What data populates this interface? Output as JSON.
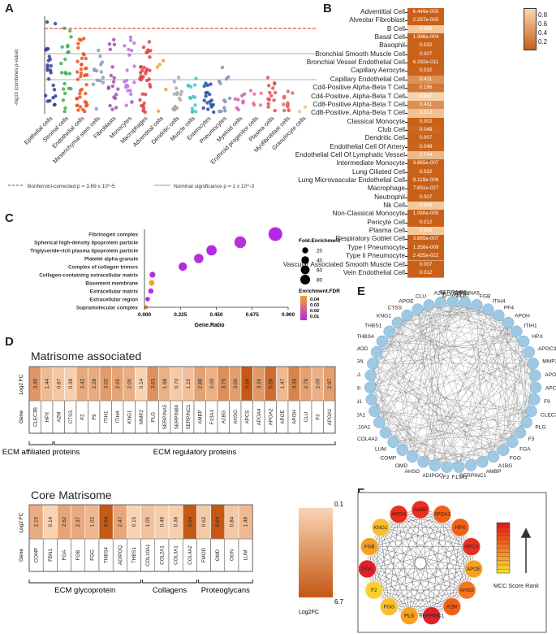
{
  "panels": {
    "a": "A",
    "b": "B",
    "c": "C",
    "d": "D",
    "e": "E",
    "f": "F"
  },
  "panel_a": {
    "ylabel": "-log10 (combines p-value)",
    "categories": [
      "Epithelial cells",
      "Stromal cells",
      "Endothelial cells",
      "Mesenchymal stem cells",
      "Fibroblasts",
      "Monocytes",
      "Macrophages",
      "Adventitial cells",
      "Dendritic cells",
      "Muscle cells",
      "Enterocytes",
      "Pneumocytes",
      "Myeloid cells",
      "Erythroid progenitor cells",
      "Plasma cells",
      "Myofibroblast cells",
      "Granulocyte cells"
    ],
    "legend_bonferroni": "Bonferroni-corrected p = 3.69 x 10^-5",
    "legend_nominal": "Nominal significance p = 1 x 10^-3",
    "colors": [
      "#3a3a9a",
      "#3ab04a",
      "#e8551e",
      "#8a9ab8",
      "#a050b0",
      "#c070e0",
      "#e04040",
      "#f0a030",
      "#aaaaaa",
      "#40c8c8",
      "#2050a0",
      "#8090c0",
      "#d060b0",
      "#f06aa0",
      "#e05050",
      "#e06060",
      "#f0c080"
    ]
  },
  "panel_b": {
    "title": "p-value",
    "colorbar_ticks": [
      "0.8",
      "0.6",
      "0.4",
      "0.2"
    ],
    "rows": [
      {
        "cell": "Adventitial Cell",
        "value": "6.449e-005"
      },
      {
        "cell": "Alveolar Fibroblast",
        "value": "2.297e-005"
      },
      {
        "cell": "B Cell",
        "value": "0.868"
      },
      {
        "cell": "Basal Cell",
        "value": "1.986e-004"
      },
      {
        "cell": "Basophil",
        "value": "0.032"
      },
      {
        "cell": "Bronchial Smooth Muscle Cell",
        "value": "0.007"
      },
      {
        "cell": "Bronchial Vessel Endothelial Cell",
        "value": "6.282e-011"
      },
      {
        "cell": "Capillary Aerocyte",
        "value": "0.032"
      },
      {
        "cell": "Capillary Endothelial Cell",
        "value": "0.411"
      },
      {
        "cell": "Cd4-Positive Alpha-Beta T Cell",
        "value": "0.196"
      },
      {
        "cell": "Cd4-Positive, Alpha-Beta T Cell",
        "value": "0.967"
      },
      {
        "cell": "Cd8-Positive Alpha-Beta T Cell",
        "value": "0.411"
      },
      {
        "cell": "Cd8-Positive, Alpha-Beta T Cell",
        "value": "0.812"
      },
      {
        "cell": "Classical Monocyte",
        "value": "0.002"
      },
      {
        "cell": "Club Cell",
        "value": "0.048"
      },
      {
        "cell": "Dendritic Cell",
        "value": "0.007"
      },
      {
        "cell": "Endothelial Cell Of Artery",
        "value": "0.048"
      },
      {
        "cell": "Endothelial Cell Of Lymphatic Vessel",
        "value": "0.744"
      },
      {
        "cell": "Intermediate Monocyte",
        "value": "3.865e-007"
      },
      {
        "cell": "Lung Ciliated Cell",
        "value": "0.032"
      },
      {
        "cell": "Lung Microvascular Endothelial Cell",
        "value": "9.119e-006"
      },
      {
        "cell": "Macrophage",
        "value": "7.651e-027"
      },
      {
        "cell": "Neutrophil",
        "value": "0.007"
      },
      {
        "cell": "Nk Cell",
        "value": "0.868"
      },
      {
        "cell": "Non-Classical Monocyte",
        "value": "1.080e-005"
      },
      {
        "cell": "Pericyte Cell",
        "value": "0.012"
      },
      {
        "cell": "Plasma Cell",
        "value": "0.868"
      },
      {
        "cell": "Respiratory Goblet Cell",
        "value": "3.865e-007"
      },
      {
        "cell": "Type I Pneumocyte",
        "value": "1.358e-009"
      },
      {
        "cell": "Type Ii Pneumocyte",
        "value": "2.425e-022"
      },
      {
        "cell": "Vascular Associated Smooth Muscle Cell",
        "value": "0.007"
      },
      {
        "cell": "Vein Endothelial Cell",
        "value": "0.012"
      }
    ]
  },
  "chart_data": {
    "type": "scatter",
    "title": "",
    "xlabel": "Gene.Ratio",
    "ylabel": "",
    "xlim": [
      0,
      0.9
    ],
    "xticks": [
      "0.000",
      "0.225",
      "0.450",
      "0.675",
      "0.900"
    ],
    "size_legend_title": "Fold.Enrichment",
    "size_legend": [
      "20",
      "40",
      "60",
      "80"
    ],
    "color_legend_title": "Enrichment.FDR",
    "color_legend": [
      "0.04",
      "0.03",
      "0.02",
      "0.01"
    ],
    "terms": [
      {
        "term": "Fibrinogen complex",
        "ratio": 0.82,
        "fold": 88,
        "fdr": 0.01
      },
      {
        "term": "Spherical high-density lipoprotein particle",
        "ratio": 0.6,
        "fold": 58,
        "fdr": 0.012
      },
      {
        "term": "Triglyceride-rich plasma lipoprotein particle",
        "ratio": 0.42,
        "fold": 42,
        "fdr": 0.01
      },
      {
        "term": "Platelet alpha granule",
        "ratio": 0.34,
        "fold": 33,
        "fdr": 0.012
      },
      {
        "term": "Complex of collagen trimers",
        "ratio": 0.24,
        "fold": 24,
        "fdr": 0.01
      },
      {
        "term": "Collagen-containing extracellular matrix",
        "ratio": 0.05,
        "fold": 8,
        "fdr": 0.01
      },
      {
        "term": "Basement membrane",
        "ratio": 0.045,
        "fold": 7,
        "fdr": 0.04
      },
      {
        "term": "Extracellular matrix",
        "ratio": 0.04,
        "fold": 6,
        "fdr": 0.012
      },
      {
        "term": "Extracellular region",
        "ratio": 0.02,
        "fold": 3,
        "fdr": 0.01
      },
      {
        "term": "Supramolecular complex",
        "ratio": 0.01,
        "fold": 2,
        "fdr": 0.04
      }
    ]
  },
  "panel_d": {
    "title1": "Matrisome associated",
    "title2": "Core Matrisome",
    "row_fc": "Log2 FC",
    "row_gene": "Gene",
    "colorbar_top": "0.1",
    "colorbar_bottom": "6.7",
    "colorbar_label": "Log2FC",
    "table1": [
      {
        "gene": "CLEC3B",
        "fc": "3.40"
      },
      {
        "gene": "HPX",
        "fc": "1.44"
      },
      {
        "gene": "A2M",
        "fc": "0.87"
      },
      {
        "gene": "CTSS",
        "fc": "0.39"
      },
      {
        "gene": "F2",
        "fc": "2.42"
      },
      {
        "gene": "F9",
        "fc": "2.28"
      },
      {
        "gene": "ITIH1",
        "fc": "3.02"
      },
      {
        "gene": "ITIH4",
        "fc": "2.65"
      },
      {
        "gene": "KNG1",
        "fc": "2.06"
      },
      {
        "gene": "MMP2",
        "fc": "0.14"
      },
      {
        "gene": "PLG",
        "fc": "3.63"
      },
      {
        "gene": "SERPINA5",
        "fc": "1.98"
      },
      {
        "gene": "SERPINB6",
        "fc": "0.70"
      },
      {
        "gene": "SERPINC1",
        "fc": "1.15"
      },
      {
        "gene": "AMBP",
        "fc": "2.88"
      },
      {
        "gene": "F13A1",
        "fc": "2.00"
      },
      {
        "gene": "A1BG",
        "fc": "3.76"
      },
      {
        "gene": "AHSG",
        "fc": "3.00"
      },
      {
        "gene": "APCS",
        "fc": "6.64"
      },
      {
        "gene": "APOA4",
        "fc": "3.26"
      },
      {
        "gene": "APOA2",
        "fc": "5.59"
      },
      {
        "gene": "APOE",
        "fc": "1.47"
      },
      {
        "gene": "APOH",
        "fc": "4.34"
      },
      {
        "gene": "CLU",
        "fc": "2.78"
      },
      {
        "gene": "F3",
        "fc": "2.00"
      },
      {
        "gene": "APOA1",
        "fc": "2.97"
      }
    ],
    "table1_groups": [
      "ECM affiliated proteins",
      "ECM regulatory proteins"
    ],
    "table2": [
      {
        "gene": "COMP",
        "fc": "2.15"
      },
      {
        "gene": "FBN1",
        "fc": "0.14"
      },
      {
        "gene": "FGA",
        "fc": "2.62"
      },
      {
        "gene": "FGB",
        "fc": "2.37"
      },
      {
        "gene": "FGG",
        "fc": "1.62"
      },
      {
        "gene": "THBS4",
        "fc": "6.64"
      },
      {
        "gene": "ADIPOQ",
        "fc": "2.47"
      },
      {
        "gene": "THBS1",
        "fc": "0.15"
      },
      {
        "gene": "COL10A1",
        "fc": "1.05"
      },
      {
        "gene": "COL2A1",
        "fc": "0.48"
      },
      {
        "gene": "COL3A1",
        "fc": "0.38"
      },
      {
        "gene": "COL4A2",
        "fc": "6.64"
      },
      {
        "gene": "FMOD",
        "fc": "0.62"
      },
      {
        "gene": "OMD",
        "fc": "6.64"
      },
      {
        "gene": "OGN",
        "fc": "0.84"
      },
      {
        "gene": "LUM",
        "fc": "1.48"
      }
    ],
    "table2_groups": [
      "ECM glycoprotein",
      "Collagens",
      "Proteoglycans"
    ]
  },
  "panel_e": {
    "nodes": [
      "SERPINB6",
      "SERPINA5",
      "FGB",
      "ITIH4",
      "PF4",
      "APOH",
      "ITIH1",
      "HPX",
      "APOC3",
      "MMP2",
      "APOA1",
      "APCS",
      "F9",
      "CLEC3B",
      "PLG",
      "F3",
      "FGA",
      "FGG",
      "A1BG",
      "AMBP",
      "SERPINC1",
      "F13A1",
      "F2",
      "ADIPOQ",
      "AHSG",
      "OMD",
      "COMP",
      "LUM",
      "COL4A2",
      "COL10A1",
      "COL2A1",
      "FBN1",
      "TGFBI",
      "COL3A1",
      "OGN",
      "FMOD",
      "THBS4",
      "THBS1",
      "KNG1",
      "CTSS",
      "APOE",
      "CLU",
      "A2M"
    ]
  },
  "panel_f": {
    "nodes": [
      {
        "name": "AMBP",
        "color": "#e83020"
      },
      {
        "name": "APOA1",
        "color": "#f06018"
      },
      {
        "name": "HPX",
        "color": "#f06018"
      },
      {
        "name": "APCS",
        "color": "#e83020"
      },
      {
        "name": "APOE",
        "color": "#f8a020"
      },
      {
        "name": "AHSG",
        "color": "#f07820"
      },
      {
        "name": "A2M",
        "color": "#f06018"
      },
      {
        "name": "SERPINC1",
        "color": "#e02028"
      },
      {
        "name": "PLG",
        "color": "#f8a020"
      },
      {
        "name": "FGG",
        "color": "#f8c030"
      },
      {
        "name": "F2",
        "color": "#f8d030"
      },
      {
        "name": "FGA",
        "color": "#e02028"
      },
      {
        "name": "FGB",
        "color": "#f8a020"
      },
      {
        "name": "KNG1",
        "color": "#f8c030"
      },
      {
        "name": "APOH",
        "color": "#e83020"
      }
    ],
    "legend_label": "MCC Score Rank"
  }
}
